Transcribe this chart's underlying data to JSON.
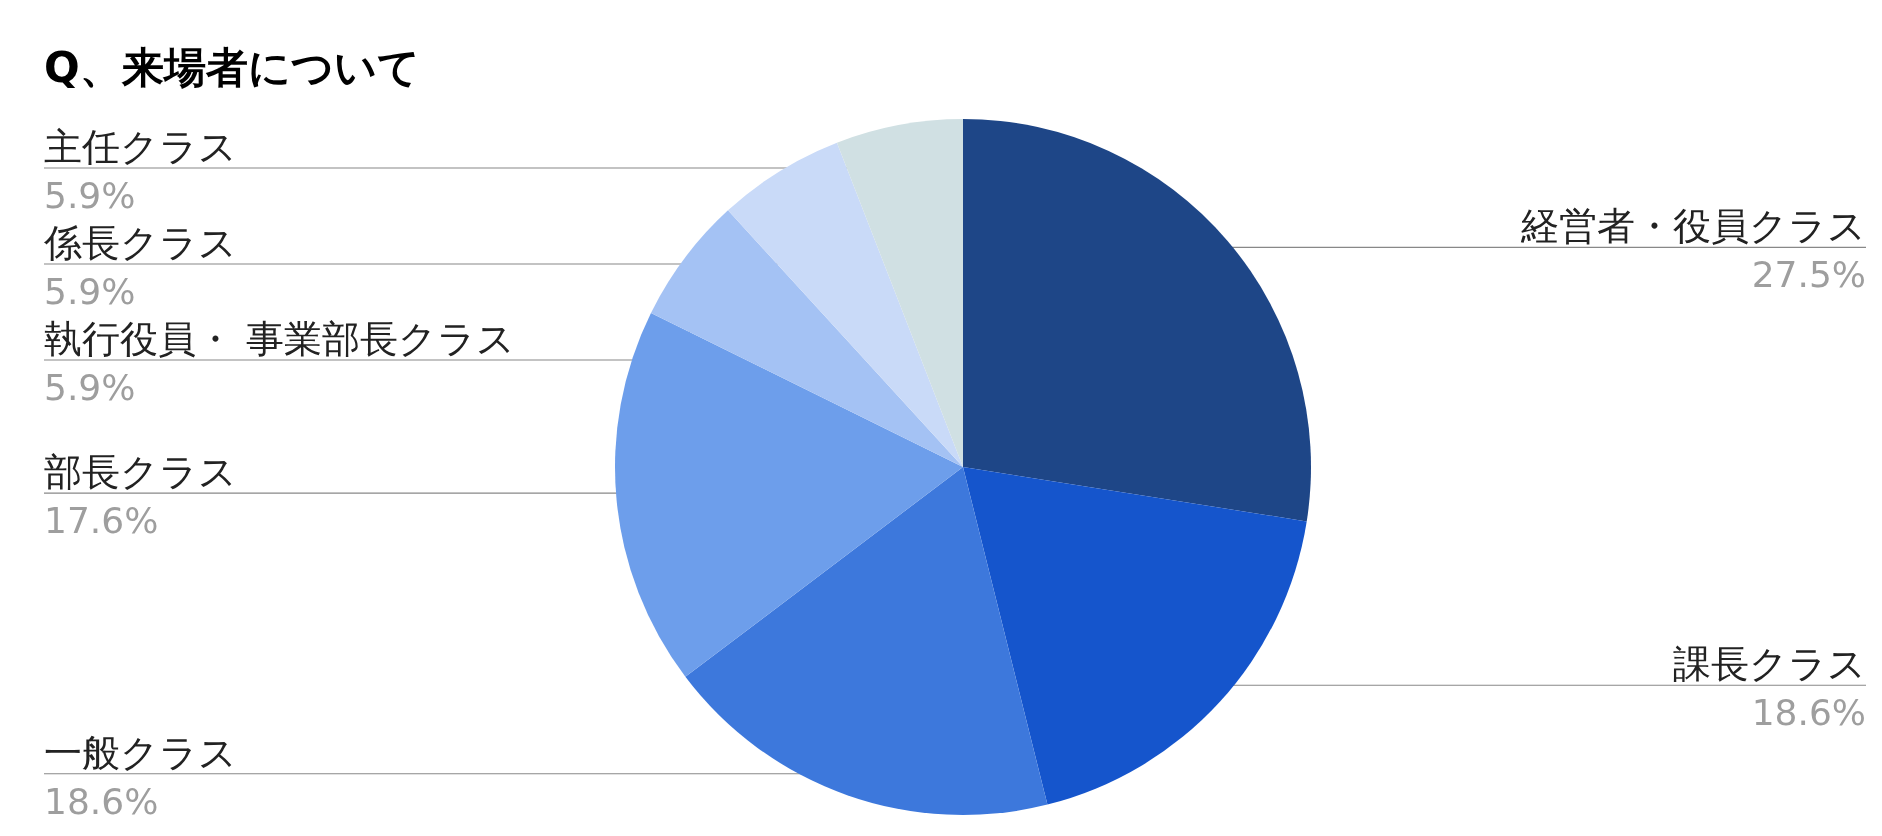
{
  "chart_data": {
    "type": "pie",
    "title": "Q、来場者について",
    "categories": [
      "経営者・役員クラス",
      "課長クラス",
      "一般クラス",
      "部長クラス",
      "執行役員・ 事業部長クラス",
      "係長クラス",
      "主任クラス"
    ],
    "values": [
      27.5,
      18.6,
      18.6,
      17.6,
      5.9,
      5.9,
      5.9
    ],
    "colors": [
      "#1e4687",
      "#1555cc",
      "#3d78dc",
      "#6d9eeb",
      "#a4c2f4",
      "#c9daf8",
      "#d0e0e3"
    ],
    "value_labels": [
      "27.5%",
      "18.6%",
      "18.6%",
      "17.6%",
      "5.9%",
      "5.9%",
      "5.9%"
    ]
  }
}
